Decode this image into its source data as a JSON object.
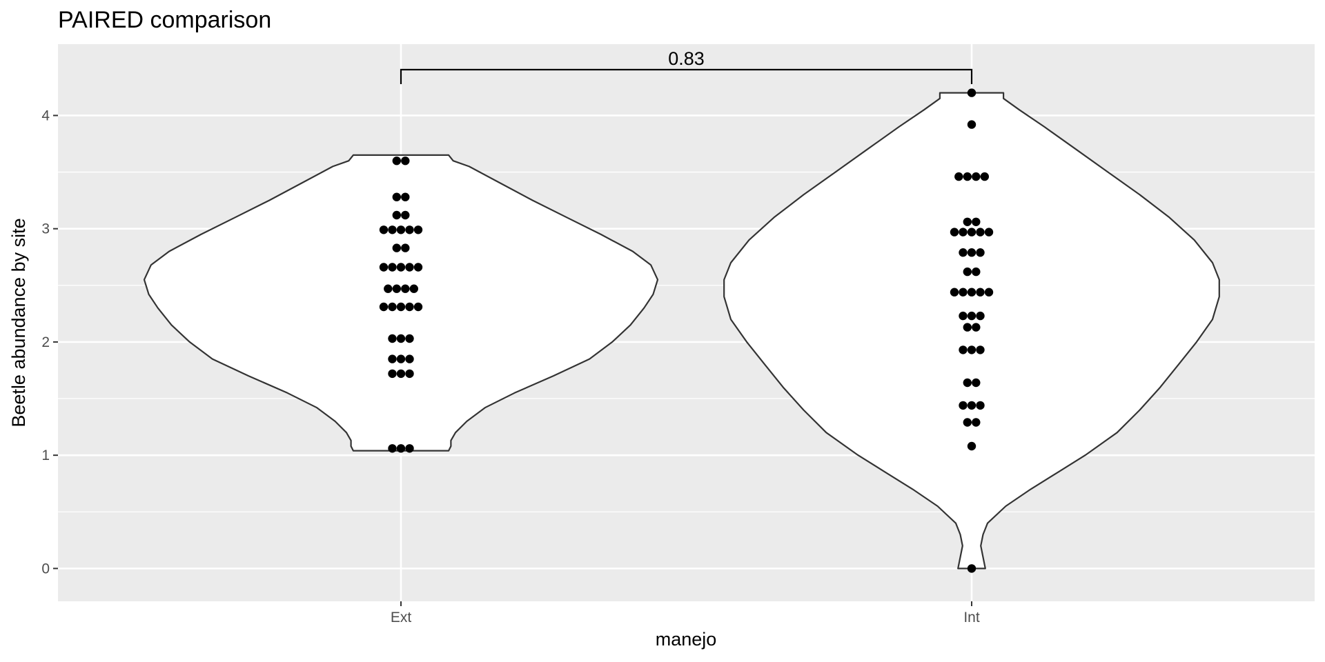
{
  "chart_data": {
    "type": "violin",
    "title": "PAIRED comparison",
    "xlabel": "manejo",
    "ylabel": "Beetle abundance by site",
    "categories": [
      "Ext",
      "Int"
    ],
    "ylim": [
      -0.29,
      4.63
    ],
    "yticks": [
      "0",
      "1",
      "2",
      "3",
      "4"
    ],
    "grid": true,
    "legend": "none",
    "groups": [
      {
        "name": "Ext",
        "range": [
          1.04,
          3.65
        ],
        "points": [
          1.06,
          1.06,
          1.06,
          1.72,
          1.72,
          1.72,
          1.85,
          1.85,
          1.85,
          2.03,
          2.03,
          2.03,
          2.31,
          2.31,
          2.31,
          2.31,
          2.31,
          2.47,
          2.47,
          2.47,
          2.47,
          2.66,
          2.66,
          2.66,
          2.66,
          2.66,
          2.83,
          2.83,
          2.99,
          2.99,
          2.99,
          2.99,
          2.99,
          3.12,
          3.12,
          3.28,
          3.28,
          3.6,
          3.6
        ],
        "density": [
          [
            1.04,
            0.21
          ],
          [
            1.08,
            0.22
          ],
          [
            1.13,
            0.22
          ],
          [
            1.2,
            0.24
          ],
          [
            1.3,
            0.29
          ],
          [
            1.42,
            0.37
          ],
          [
            1.55,
            0.5
          ],
          [
            1.7,
            0.67
          ],
          [
            1.85,
            0.83
          ],
          [
            2.0,
            0.93
          ],
          [
            2.15,
            1.01
          ],
          [
            2.3,
            1.07
          ],
          [
            2.42,
            1.11
          ],
          [
            2.55,
            1.13
          ],
          [
            2.68,
            1.1
          ],
          [
            2.8,
            1.02
          ],
          [
            2.95,
            0.88
          ],
          [
            3.1,
            0.73
          ],
          [
            3.25,
            0.58
          ],
          [
            3.4,
            0.44
          ],
          [
            3.55,
            0.3
          ],
          [
            3.6,
            0.23
          ],
          [
            3.65,
            0.21
          ]
        ]
      },
      {
        "name": "Int",
        "range": [
          0,
          4.2
        ],
        "points": [
          0,
          1.08,
          1.29,
          1.29,
          1.44,
          1.44,
          1.44,
          1.64,
          1.64,
          1.93,
          1.93,
          1.93,
          2.13,
          2.13,
          2.23,
          2.23,
          2.23,
          2.44,
          2.44,
          2.44,
          2.44,
          2.44,
          2.62,
          2.62,
          2.79,
          2.79,
          2.79,
          2.97,
          2.97,
          2.97,
          2.97,
          2.97,
          3.06,
          3.06,
          3.46,
          3.46,
          3.46,
          3.46,
          3.92,
          4.2
        ],
        "density": [
          [
            0.0,
            0.06
          ],
          [
            0.1,
            0.05
          ],
          [
            0.2,
            0.04
          ],
          [
            0.3,
            0.05
          ],
          [
            0.4,
            0.07
          ],
          [
            0.55,
            0.15
          ],
          [
            0.7,
            0.26
          ],
          [
            0.85,
            0.38
          ],
          [
            1.0,
            0.5
          ],
          [
            1.2,
            0.64
          ],
          [
            1.4,
            0.74
          ],
          [
            1.6,
            0.83
          ],
          [
            1.8,
            0.91
          ],
          [
            2.0,
            0.99
          ],
          [
            2.2,
            1.06
          ],
          [
            2.4,
            1.09
          ],
          [
            2.55,
            1.09
          ],
          [
            2.7,
            1.06
          ],
          [
            2.9,
            0.98
          ],
          [
            3.1,
            0.87
          ],
          [
            3.3,
            0.74
          ],
          [
            3.5,
            0.6
          ],
          [
            3.7,
            0.46
          ],
          [
            3.9,
            0.32
          ],
          [
            4.05,
            0.21
          ],
          [
            4.15,
            0.14
          ],
          [
            4.2,
            0.14
          ]
        ]
      }
    ],
    "annotations": [
      {
        "from": "Ext",
        "to": "Int",
        "label": "0.83"
      }
    ]
  }
}
